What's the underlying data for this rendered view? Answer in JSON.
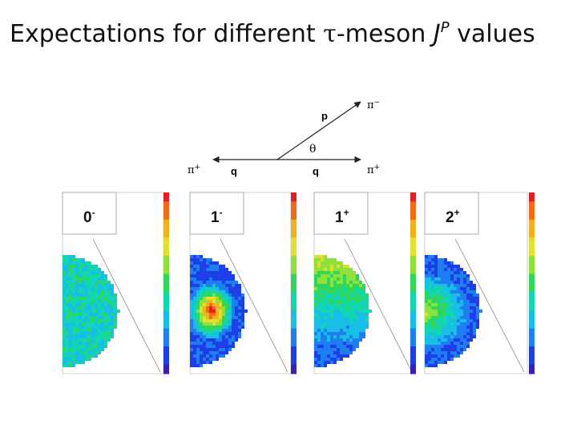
{
  "title": {
    "prefix": "Expectations for different ",
    "tau": "τ",
    "middle": "-meson ",
    "j": "J",
    "p": "P",
    "suffix": " values"
  },
  "diagram": {
    "p_label": "p",
    "pi_minus": "π",
    "pi_minus_sup": "−",
    "theta": "θ",
    "pi_plus_left": "π",
    "pi_plus_left_sup": "+",
    "q_left": "q",
    "q_right": "q",
    "pi_plus_right": "π",
    "pi_plus_right_sup": "+"
  },
  "panels": [
    {
      "label": "0",
      "sign": "-",
      "pattern": "flat"
    },
    {
      "label": "1",
      "sign": "-",
      "pattern": "center"
    },
    {
      "label": "1",
      "sign": "+",
      "pattern": "top"
    },
    {
      "label": "2",
      "sign": "+",
      "pattern": "middle"
    }
  ],
  "colors": {
    "scale": [
      "#3a1fb0",
      "#1e3ee8",
      "#1e7ff0",
      "#17bfe6",
      "#12d6b0",
      "#2fd65a",
      "#8ee03a",
      "#e0e030",
      "#f5b020",
      "#f06a18",
      "#e02020"
    ]
  }
}
